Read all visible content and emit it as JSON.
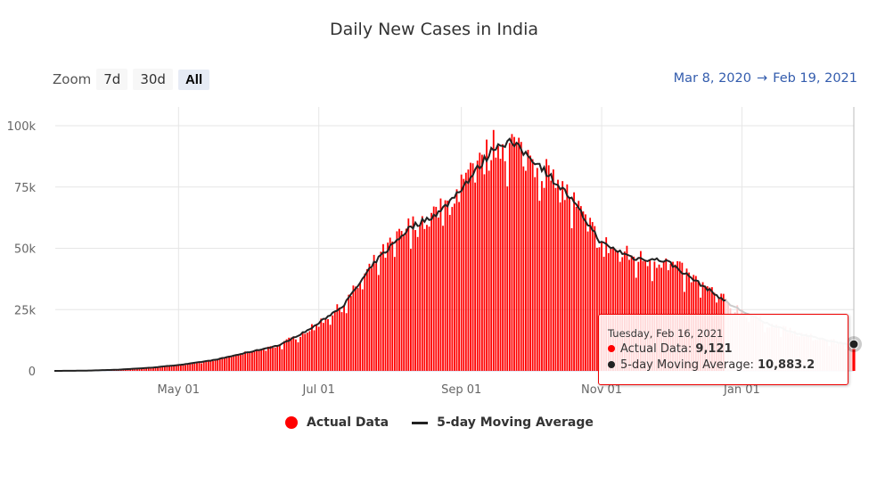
{
  "header": {
    "title": "Daily New Cases in India"
  },
  "zoom": {
    "label": "Zoom",
    "buttons": [
      "7d",
      "30d",
      "All"
    ],
    "selected": "All"
  },
  "range": {
    "from": "Mar 8, 2020",
    "arrow": "→",
    "to": "Feb 19, 2021"
  },
  "tooltip": {
    "date": "Tuesday, Feb 16, 2021",
    "actual_label": "Actual Data: ",
    "actual_value": "9,121",
    "ma_label": "5-day Moving Average: ",
    "ma_value": "10,883.2"
  },
  "legend": {
    "actual": "Actual Data",
    "ma": "5-day Moving Average"
  },
  "colors": {
    "bar": "#ff0000",
    "line": "#222222",
    "link": "#335cad"
  },
  "chart_data": {
    "type": "bar",
    "title": "Daily New Cases in India",
    "x_start": "2020-03-08",
    "x_end": "2021-02-19",
    "x_ticks": [
      "May 01",
      "Jul 01",
      "Sep 01",
      "Nov 01",
      "Jan 01"
    ],
    "y_ticks": [
      "0",
      "25k",
      "50k",
      "75k",
      "100k"
    ],
    "ylim": [
      0,
      100000
    ],
    "series": [
      {
        "name": "Actual Data",
        "type": "bar"
      },
      {
        "name": "5-day Moving Average",
        "type": "line"
      }
    ],
    "moving_average_points": [
      {
        "day": 0,
        "value": 0
      },
      {
        "day": 14,
        "value": 100
      },
      {
        "day": 28,
        "value": 500
      },
      {
        "day": 42,
        "value": 1300
      },
      {
        "day": 56,
        "value": 2600
      },
      {
        "day": 70,
        "value": 4500
      },
      {
        "day": 84,
        "value": 7500
      },
      {
        "day": 98,
        "value": 10500
      },
      {
        "day": 112,
        "value": 17500
      },
      {
        "day": 126,
        "value": 27000
      },
      {
        "day": 140,
        "value": 45000
      },
      {
        "day": 154,
        "value": 58000
      },
      {
        "day": 168,
        "value": 65000
      },
      {
        "day": 182,
        "value": 80000
      },
      {
        "day": 192,
        "value": 92000
      },
      {
        "day": 198,
        "value": 93500
      },
      {
        "day": 210,
        "value": 85000
      },
      {
        "day": 224,
        "value": 71000
      },
      {
        "day": 238,
        "value": 52000
      },
      {
        "day": 252,
        "value": 46000
      },
      {
        "day": 266,
        "value": 45000
      },
      {
        "day": 280,
        "value": 36000
      },
      {
        "day": 294,
        "value": 27000
      },
      {
        "day": 308,
        "value": 20000
      },
      {
        "day": 322,
        "value": 15500
      },
      {
        "day": 336,
        "value": 12500
      },
      {
        "day": 345,
        "value": 10883
      },
      {
        "day": 348,
        "value": 11200
      }
    ]
  }
}
